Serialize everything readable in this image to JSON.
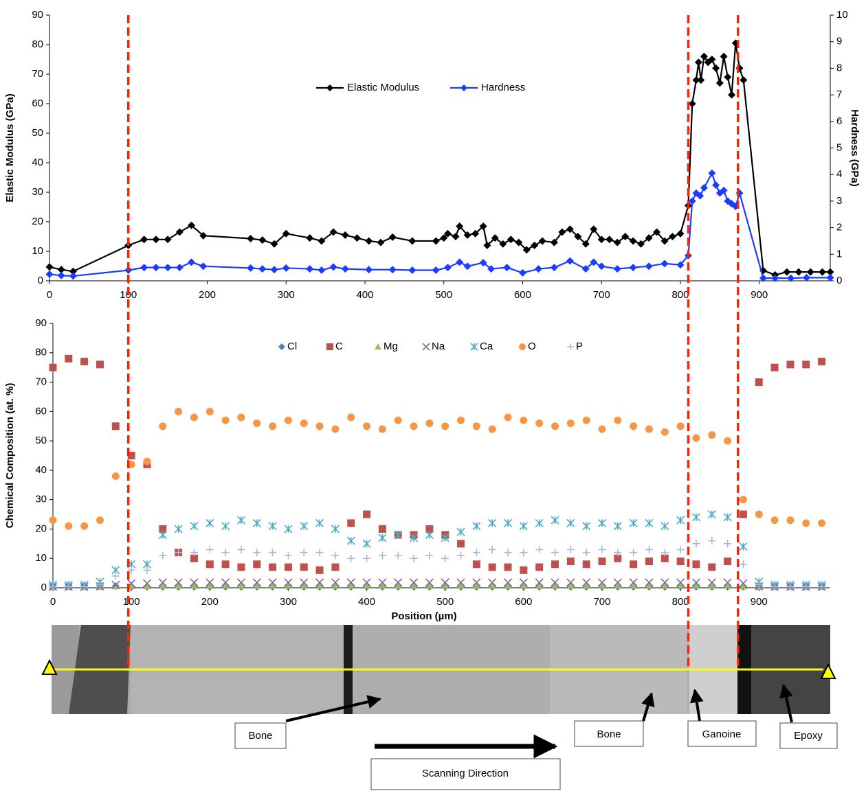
{
  "chart_data": [
    {
      "type": "line",
      "ylabel": "Elastic Modulus (GPa)",
      "y2label": "Hardness (GPa)",
      "xlim": [
        0,
        990
      ],
      "xticks": [
        0,
        100,
        200,
        300,
        400,
        500,
        600,
        700,
        800,
        900
      ],
      "ylim": [
        0,
        90
      ],
      "yticks": [
        0,
        10,
        20,
        30,
        40,
        50,
        60,
        70,
        80,
        90
      ],
      "y2lim": [
        0,
        10
      ],
      "y2ticks": [
        0,
        1,
        2,
        3,
        4,
        5,
        6,
        7,
        8,
        9,
        10
      ],
      "grid": false,
      "legend": "top",
      "series": [
        {
          "name": "Elastic Modulus",
          "color": "#000000",
          "marker": "diamond",
          "x": [
            0,
            15,
            30,
            100,
            120,
            135,
            150,
            165,
            180,
            195,
            255,
            270,
            285,
            300,
            330,
            345,
            360,
            375,
            390,
            405,
            420,
            435,
            460,
            490,
            500,
            505,
            515,
            520,
            530,
            540,
            550,
            555,
            565,
            575,
            585,
            595,
            605,
            615,
            625,
            640,
            650,
            660,
            670,
            680,
            690,
            700,
            710,
            720,
            730,
            740,
            750,
            760,
            770,
            780,
            790,
            800,
            810,
            815,
            820,
            823,
            826,
            830,
            835,
            840,
            845,
            850,
            855,
            860,
            865,
            870,
            875,
            880,
            905,
            920,
            935,
            950,
            965,
            980,
            990
          ],
          "values": [
            4.7,
            3.8,
            3.2,
            12,
            14,
            14,
            14,
            16.5,
            18.8,
            15.3,
            14.3,
            13.8,
            12.5,
            16,
            14.5,
            13.5,
            16.5,
            15.5,
            14.5,
            13.5,
            13,
            14.8,
            13.5,
            13.5,
            14.5,
            16,
            15,
            18.5,
            15.5,
            16,
            18.5,
            12,
            14.5,
            12.5,
            14,
            13,
            10.5,
            12,
            13.5,
            13,
            16.5,
            17.5,
            15,
            12.5,
            17.5,
            14,
            14,
            13,
            15,
            13.5,
            12.5,
            14.5,
            16.5,
            13.5,
            15,
            16,
            25.5,
            60,
            68,
            74,
            68,
            76,
            74,
            75,
            72,
            67,
            76,
            69,
            63,
            80.5,
            72,
            68,
            3.5,
            2,
            3,
            3,
            3,
            3,
            3
          ]
        },
        {
          "name": "Hardness",
          "color": "#1a3cff",
          "marker": "diamond",
          "axis": "y2",
          "x": [
            0,
            15,
            30,
            100,
            120,
            135,
            150,
            165,
            180,
            195,
            255,
            270,
            285,
            300,
            330,
            345,
            360,
            375,
            405,
            435,
            460,
            490,
            505,
            520,
            530,
            550,
            560,
            580,
            600,
            620,
            640,
            660,
            680,
            690,
            700,
            720,
            740,
            760,
            780,
            800,
            810,
            815,
            820,
            825,
            830,
            840,
            845,
            850,
            855,
            860,
            865,
            870,
            875,
            905,
            920,
            940,
            960,
            990
          ],
          "values": [
            0.25,
            0.2,
            0.18,
            0.4,
            0.5,
            0.5,
            0.5,
            0.5,
            0.7,
            0.55,
            0.48,
            0.45,
            0.42,
            0.48,
            0.45,
            0.4,
            0.52,
            0.45,
            0.42,
            0.42,
            0.4,
            0.4,
            0.5,
            0.7,
            0.55,
            0.68,
            0.45,
            0.5,
            0.3,
            0.45,
            0.5,
            0.75,
            0.45,
            0.7,
            0.55,
            0.45,
            0.5,
            0.55,
            0.65,
            0.6,
            0.95,
            3.0,
            3.3,
            3.2,
            3.5,
            4.05,
            3.6,
            3.3,
            3.4,
            3.0,
            2.9,
            2.8,
            3.3,
            0.1,
            0.1,
            0.1,
            0.12,
            0.12
          ]
        }
      ]
    },
    {
      "type": "scatter",
      "xlabel": "Position (µm)",
      "ylabel": "Chemical Composition (at. %)",
      "xlim": [
        0,
        990
      ],
      "xticks": [
        0,
        100,
        200,
        300,
        400,
        500,
        600,
        700,
        800,
        900
      ],
      "ylim": [
        0,
        90
      ],
      "yticks": [
        0,
        10,
        20,
        30,
        40,
        50,
        60,
        70,
        80,
        90
      ],
      "grid": false,
      "legend": "top",
      "x": [
        0,
        20,
        40,
        60,
        80,
        100,
        120,
        140,
        160,
        180,
        200,
        220,
        240,
        260,
        280,
        300,
        320,
        340,
        360,
        380,
        400,
        420,
        440,
        460,
        480,
        500,
        520,
        540,
        560,
        580,
        600,
        620,
        640,
        660,
        680,
        700,
        720,
        740,
        760,
        780,
        800,
        820,
        840,
        860,
        880,
        900,
        920,
        940,
        960,
        980
      ],
      "series": [
        {
          "name": "Cl",
          "color": "#4a7ebb",
          "marker": "diamond",
          "values": [
            0.8,
            0.8,
            0.8,
            0.8,
            0.6,
            0.3,
            0.3,
            0.3,
            0.3,
            0.3,
            0.3,
            0.3,
            0.3,
            0.3,
            0.3,
            0.3,
            0.3,
            0.3,
            0.3,
            0.3,
            0.3,
            0.3,
            0.3,
            0.3,
            0.3,
            0.3,
            0.3,
            0.3,
            0.3,
            0.3,
            0.3,
            0.3,
            0.3,
            0.3,
            0.3,
            0.3,
            0.3,
            0.3,
            0.3,
            0.3,
            0.3,
            0.3,
            0.3,
            0.3,
            0.3,
            0.6,
            0.8,
            0.8,
            0.8,
            0.8
          ]
        },
        {
          "name": "C",
          "color": "#c0504d",
          "marker": "square",
          "values": [
            75,
            78,
            77,
            76,
            55,
            45,
            42,
            20,
            12,
            10,
            8,
            8,
            7,
            8,
            7,
            7,
            7,
            6,
            7,
            22,
            25,
            20,
            18,
            18,
            20,
            18,
            15,
            8,
            7,
            7,
            6,
            7,
            8,
            9,
            8,
            9,
            10,
            8,
            9,
            10,
            9,
            8,
            7,
            9,
            25,
            70,
            75,
            76,
            76,
            77
          ]
        },
        {
          "name": "Mg",
          "color": "#9bbb59",
          "marker": "triangle",
          "values": [
            0.2,
            0.2,
            0.2,
            0.3,
            0.5,
            0.6,
            0.6,
            0.7,
            0.7,
            0.7,
            0.7,
            0.7,
            0.7,
            0.7,
            0.7,
            0.7,
            0.7,
            0.7,
            0.7,
            0.7,
            0.7,
            0.7,
            0.7,
            0.7,
            0.7,
            0.7,
            0.7,
            0.7,
            0.7,
            0.7,
            0.7,
            0.7,
            0.7,
            0.7,
            0.7,
            0.7,
            0.7,
            0.7,
            0.7,
            0.7,
            0.7,
            0.7,
            0.7,
            0.7,
            0.5,
            0.3,
            0.2,
            0.2,
            0.2,
            0.2
          ]
        },
        {
          "name": "Na",
          "color": "#8064a2",
          "marker": "x",
          "values": [
            0.3,
            0.3,
            0.3,
            0.5,
            1,
            1.5,
            1.5,
            1.8,
            1.8,
            1.8,
            1.8,
            1.8,
            1.8,
            1.8,
            1.8,
            1.8,
            1.8,
            1.8,
            1.8,
            1.8,
            1.8,
            1.8,
            1.8,
            1.8,
            1.8,
            1.8,
            1.8,
            1.8,
            1.8,
            1.8,
            1.8,
            1.8,
            1.8,
            1.8,
            1.8,
            1.8,
            1.8,
            1.8,
            1.8,
            1.8,
            1.8,
            1.8,
            1.8,
            1.8,
            1.5,
            0.5,
            0.3,
            0.3,
            0.3,
            0.3
          ]
        },
        {
          "name": "Ca",
          "color": "#4bacc6",
          "marker": "star",
          "values": [
            1,
            1,
            1,
            2,
            6,
            8,
            8,
            18,
            20,
            21,
            22,
            21,
            23,
            22,
            21,
            20,
            21,
            22,
            20,
            16,
            15,
            17,
            18,
            17,
            18,
            17,
            19,
            21,
            22,
            22,
            21,
            22,
            23,
            22,
            21,
            22,
            21,
            22,
            22,
            21,
            23,
            24,
            25,
            24,
            14,
            2,
            1,
            1,
            1,
            1
          ]
        },
        {
          "name": "O",
          "color": "#f79646",
          "marker": "circle",
          "values": [
            23,
            21,
            21,
            23,
            38,
            42,
            43,
            55,
            60,
            58,
            60,
            57,
            58,
            56,
            55,
            57,
            56,
            55,
            54,
            58,
            55,
            54,
            57,
            55,
            56,
            55,
            57,
            55,
            54,
            58,
            57,
            56,
            55,
            56,
            57,
            54,
            57,
            55,
            54,
            53,
            55,
            51,
            52,
            50,
            30,
            25,
            23,
            23,
            22,
            22
          ]
        },
        {
          "name": "P",
          "color": "#a9b6dd",
          "marker": "plus",
          "values": [
            0.5,
            0.5,
            0.5,
            1,
            4,
            6,
            6,
            11,
            12,
            12,
            13,
            12,
            13,
            12,
            12,
            11,
            12,
            12,
            11,
            10,
            10,
            11,
            11,
            10,
            11,
            10,
            11,
            12,
            13,
            12,
            12,
            13,
            12,
            13,
            12,
            13,
            12,
            12,
            13,
            12,
            13,
            15,
            16,
            15,
            8,
            1,
            0.5,
            0.5,
            0.5,
            0.5
          ]
        }
      ]
    }
  ],
  "boundaries": [
    100,
    810,
    873
  ],
  "labels": [
    "Bone",
    "Bone",
    "Ganoine",
    "Epoxy",
    "Scanning Direction"
  ]
}
